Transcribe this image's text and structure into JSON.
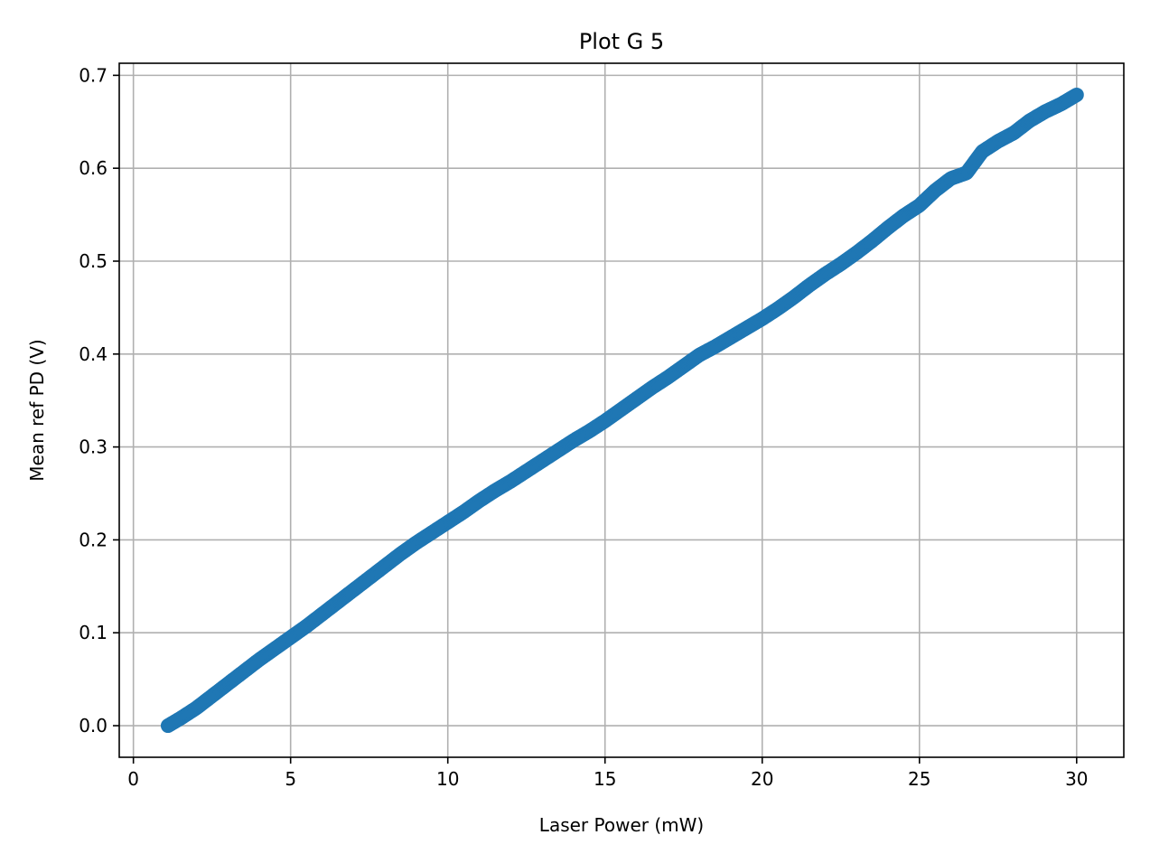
{
  "chart_data": {
    "type": "scatter",
    "title": "Plot G 5",
    "xlabel": "Laser Power (mW)",
    "ylabel": "Mean ref PD (V)",
    "xlim": [
      -0.45,
      31.5
    ],
    "ylim": [
      -0.034,
      0.713
    ],
    "xticks": [
      0,
      5,
      10,
      15,
      20,
      25,
      30
    ],
    "xtick_labels": [
      "0",
      "5",
      "10",
      "15",
      "20",
      "25",
      "30"
    ],
    "yticks": [
      0.0,
      0.1,
      0.2,
      0.3,
      0.4,
      0.5,
      0.6,
      0.7
    ],
    "ytick_labels": [
      "0.0",
      "0.1",
      "0.2",
      "0.3",
      "0.4",
      "0.5",
      "0.6",
      "0.7"
    ],
    "grid": true,
    "series_color": "#1f77b4",
    "grid_color": "#b0b0b0",
    "series": [
      {
        "x": [
          1.1,
          1.5,
          2.0,
          2.5,
          3.0,
          3.5,
          4.0,
          4.5,
          5.0,
          5.5,
          6.0,
          6.5,
          7.0,
          7.5,
          8.0,
          8.5,
          9.0,
          9.5,
          10.0,
          10.5,
          11.0,
          11.5,
          12.0,
          12.5,
          13.0,
          13.5,
          14.0,
          14.5,
          15.0,
          15.5,
          16.0,
          16.5,
          17.0,
          17.5,
          18.0,
          18.5,
          19.0,
          19.5,
          20.0,
          20.5,
          21.0,
          21.5,
          22.0,
          22.5,
          23.0,
          23.5,
          24.0,
          24.5,
          25.0,
          25.5,
          26.0,
          26.5,
          27.0,
          27.5,
          28.0,
          28.5,
          29.0,
          29.5,
          30.0
        ],
        "y": [
          0.0,
          0.008,
          0.019,
          0.032,
          0.045,
          0.058,
          0.071,
          0.083,
          0.095,
          0.107,
          0.12,
          0.133,
          0.146,
          0.159,
          0.172,
          0.185,
          0.197,
          0.208,
          0.219,
          0.23,
          0.242,
          0.253,
          0.263,
          0.274,
          0.285,
          0.296,
          0.307,
          0.317,
          0.328,
          0.34,
          0.352,
          0.364,
          0.375,
          0.387,
          0.399,
          0.408,
          0.418,
          0.428,
          0.438,
          0.449,
          0.461,
          0.474,
          0.486,
          0.497,
          0.509,
          0.522,
          0.536,
          0.549,
          0.56,
          0.576,
          0.589,
          0.595,
          0.618,
          0.629,
          0.638,
          0.651,
          0.661,
          0.669,
          0.679
        ]
      }
    ]
  }
}
